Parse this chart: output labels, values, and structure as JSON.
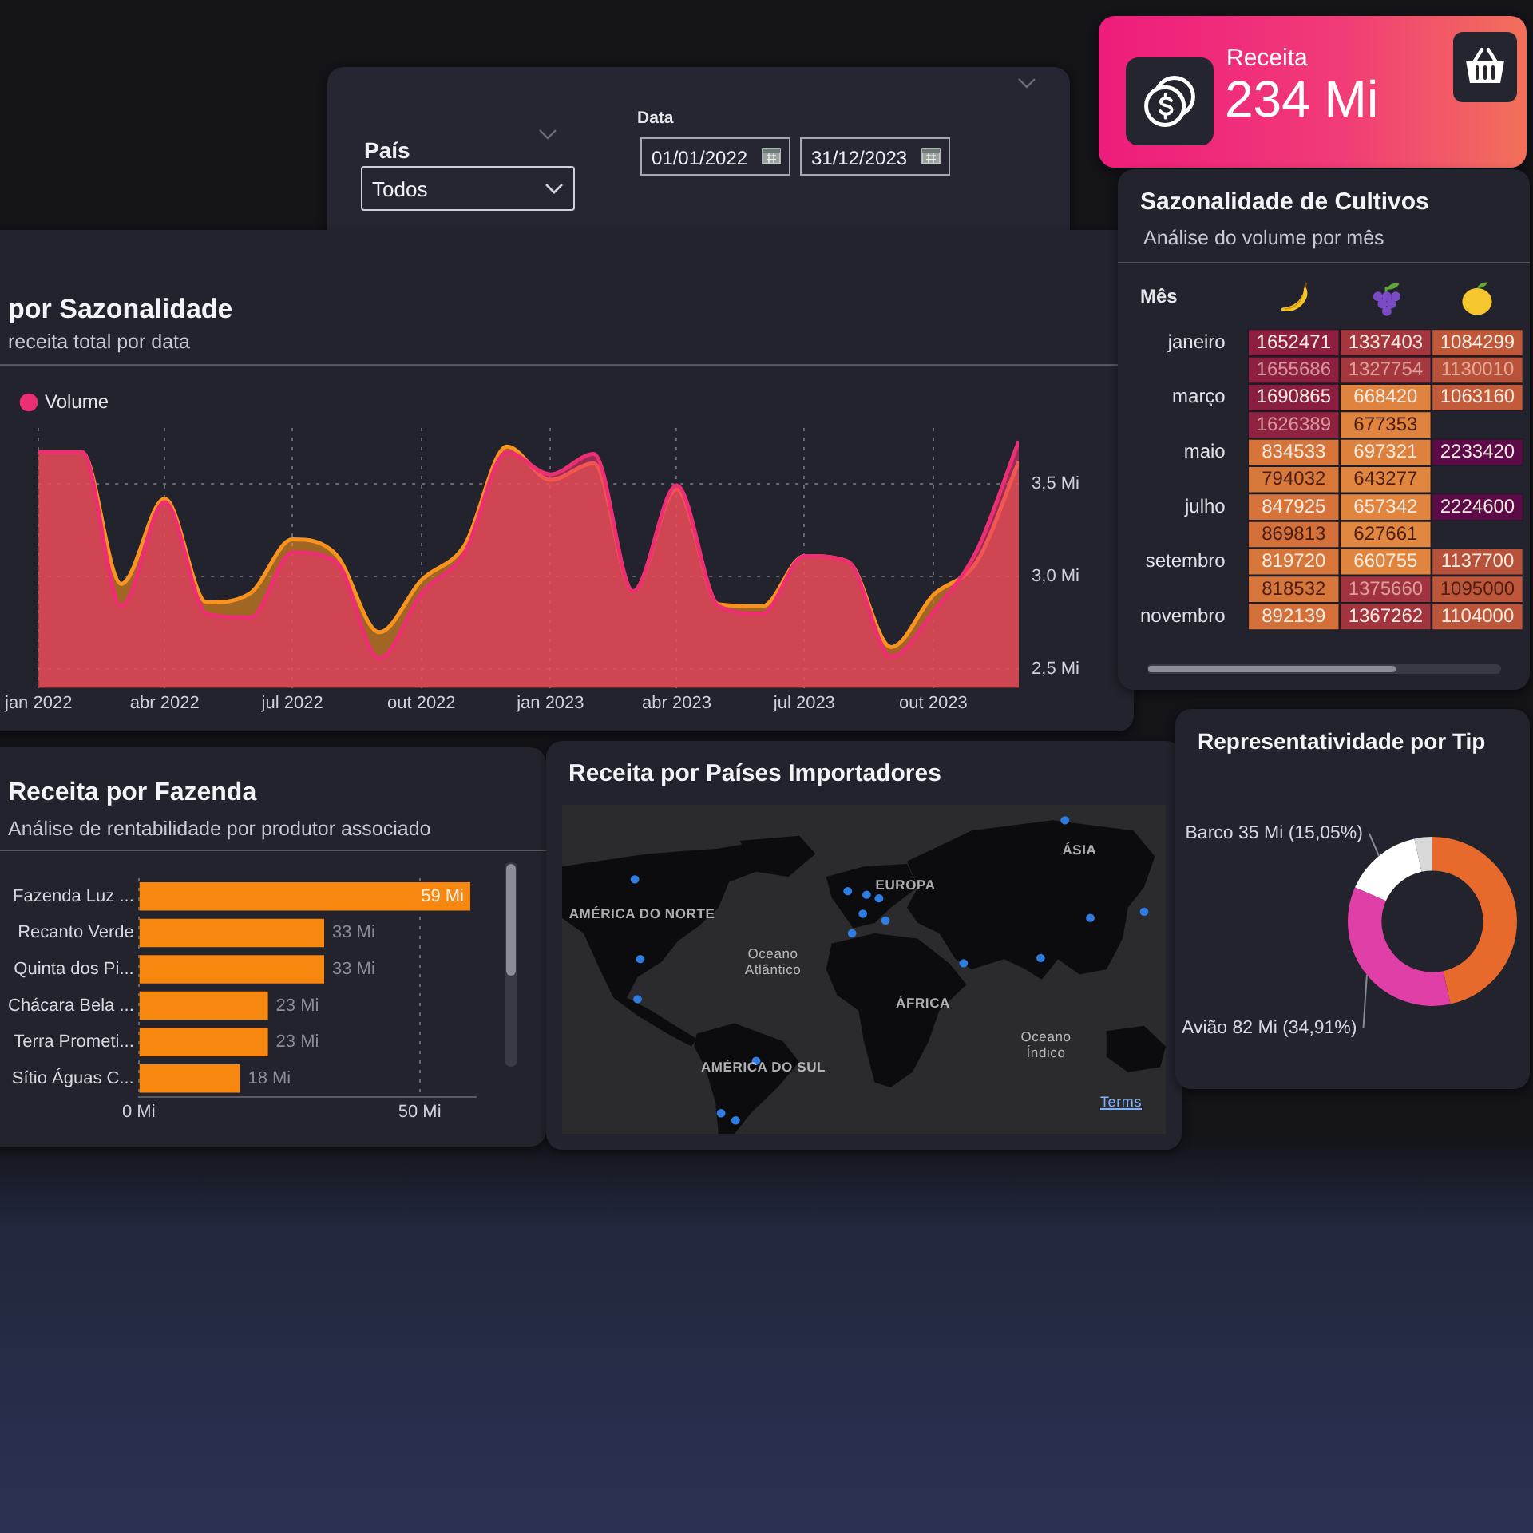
{
  "chart_data": [
    {
      "type": "other",
      "annotations": [
        "País",
        "Todos",
        "Data",
        "01/01/2022",
        "31/12/2023"
      ]
    },
    {
      "type": "other",
      "annotations": [
        "Receita",
        "234 Mi"
      ]
    },
    {
      "type": "area",
      "title": "por Sazonalidade",
      "subtitle": "receita total por data",
      "x": [
        "2022-01",
        "2022-02",
        "2022-03",
        "2022-04",
        "2022-05",
        "2022-06",
        "2022-07",
        "2022-08",
        "2022-09",
        "2022-10",
        "2022-11",
        "2022-12",
        "2023-01",
        "2023-02",
        "2023-03",
        "2023-04",
        "2023-05",
        "2023-06",
        "2023-07",
        "2023-08",
        "2023-09",
        "2023-10",
        "2023-11",
        "2023-12"
      ],
      "series": [
        {
          "color": "#f7931e",
          "values": [
            3.67,
            3.67,
            2.96,
            3.42,
            2.86,
            2.91,
            3.2,
            3.12,
            2.7,
            2.98,
            3.17,
            3.7,
            3.52,
            3.61,
            2.92,
            3.47,
            2.85,
            2.84,
            3.11,
            3.08,
            2.62,
            2.9,
            3.08,
            3.62
          ]
        },
        {
          "name": "Volume",
          "color": "#ec2f72",
          "values": [
            3.67,
            3.67,
            2.84,
            3.4,
            2.8,
            2.78,
            3.13,
            3.08,
            2.56,
            2.91,
            3.13,
            3.67,
            3.55,
            3.66,
            2.92,
            3.49,
            2.84,
            2.8,
            3.11,
            3.08,
            2.57,
            2.81,
            3.14,
            3.73
          ]
        }
      ],
      "xlim": [
        "2022-01",
        "2023-12"
      ],
      "xticks": [
        {
          "value": "2022-01",
          "label": "jan 2022"
        },
        {
          "value": "2022-04",
          "label": "abr 2022"
        },
        {
          "value": "2022-07",
          "label": "jul 2022"
        },
        {
          "value": "2022-10",
          "label": "out 2022"
        },
        {
          "value": "2023-01",
          "label": "jan 2023"
        },
        {
          "value": "2023-04",
          "label": "abr 2023"
        },
        {
          "value": "2023-07",
          "label": "jul 2023"
        },
        {
          "value": "2023-10",
          "label": "out 2023"
        }
      ],
      "ylim": [
        2.4,
        3.8
      ],
      "yticks": [
        {
          "value": 2.5,
          "label": "2,5 Mi"
        },
        {
          "value": 3,
          "label": "3,0 Mi"
        },
        {
          "value": 3.5,
          "label": "3,5 Mi"
        }
      ],
      "grid": true,
      "legend": "top left"
    },
    {
      "type": "heatmap",
      "title": "Sazonalidade de Cultivos",
      "subtitle": "Análise do volume por mês",
      "ylabel": "Mês",
      "categories": [
        null,
        null,
        null
      ],
      "y_categories": [
        "janeiro",
        null,
        "março",
        null,
        "maio",
        null,
        "julho",
        null,
        "setembro",
        null,
        "novembro"
      ],
      "cells": [
        [
          1652471,
          1337403,
          1084299
        ],
        [
          1655686,
          1327754,
          1130010
        ],
        [
          1690865,
          668420,
          1063160
        ],
        [
          1626389,
          677353,
          null
        ],
        [
          834533,
          697321,
          2233420
        ],
        [
          794032,
          643277,
          null
        ],
        [
          847925,
          657342,
          2224600
        ],
        [
          869813,
          627661,
          null
        ],
        [
          819720,
          660755,
          1137700
        ],
        [
          818532,
          1375660,
          1095000
        ],
        [
          892139,
          1367262,
          1104000
        ]
      ],
      "data_labels": true
    },
    {
      "type": "bar",
      "orientation": "horizontal",
      "title": "Receita por Fazenda",
      "subtitle": "Análise de rentabilidade por produtor associado",
      "categories": [
        "Fazenda Luz ...",
        "Recanto Verde",
        "Quinta dos Pi...",
        "Chácara Bela ...",
        "Terra Prometi...",
        "Sítio Águas C..."
      ],
      "values": [
        59,
        33,
        33,
        23,
        23,
        18
      ],
      "value_labels": [
        "59 Mi",
        "33 Mi",
        "33 Mi",
        "23 Mi",
        "23 Mi",
        "18 Mi"
      ],
      "color": "#f7870f",
      "xlim": [
        0,
        60
      ],
      "xticks": [
        {
          "value": 0,
          "label": "0 Mi"
        },
        {
          "value": 50,
          "label": "50 Mi"
        }
      ],
      "grid": "x"
    },
    {
      "type": "other",
      "title": "Receita por Países Importadores",
      "annotations": [
        "ÁSIA",
        "EUROPA",
        "AMÉRICA DO NORTE",
        "Oceano Atlântico",
        "ÁFRICA",
        "Oceano Índico",
        "AMÉRICA DO SUL",
        "Terms"
      ]
    },
    {
      "type": "donut",
      "title": "Representatividade por Tip",
      "categories": [
        null,
        "Avião",
        "Barco",
        null
      ],
      "values": [
        109,
        82,
        35,
        8
      ],
      "value_labels": [
        null,
        "82 Mi (34,91%)",
        "35 Mi (15,05%)",
        null
      ],
      "colors": [
        "#e8692c",
        "#e03fa8",
        "#ffffff",
        "#d9d9d9"
      ]
    }
  ]
}
